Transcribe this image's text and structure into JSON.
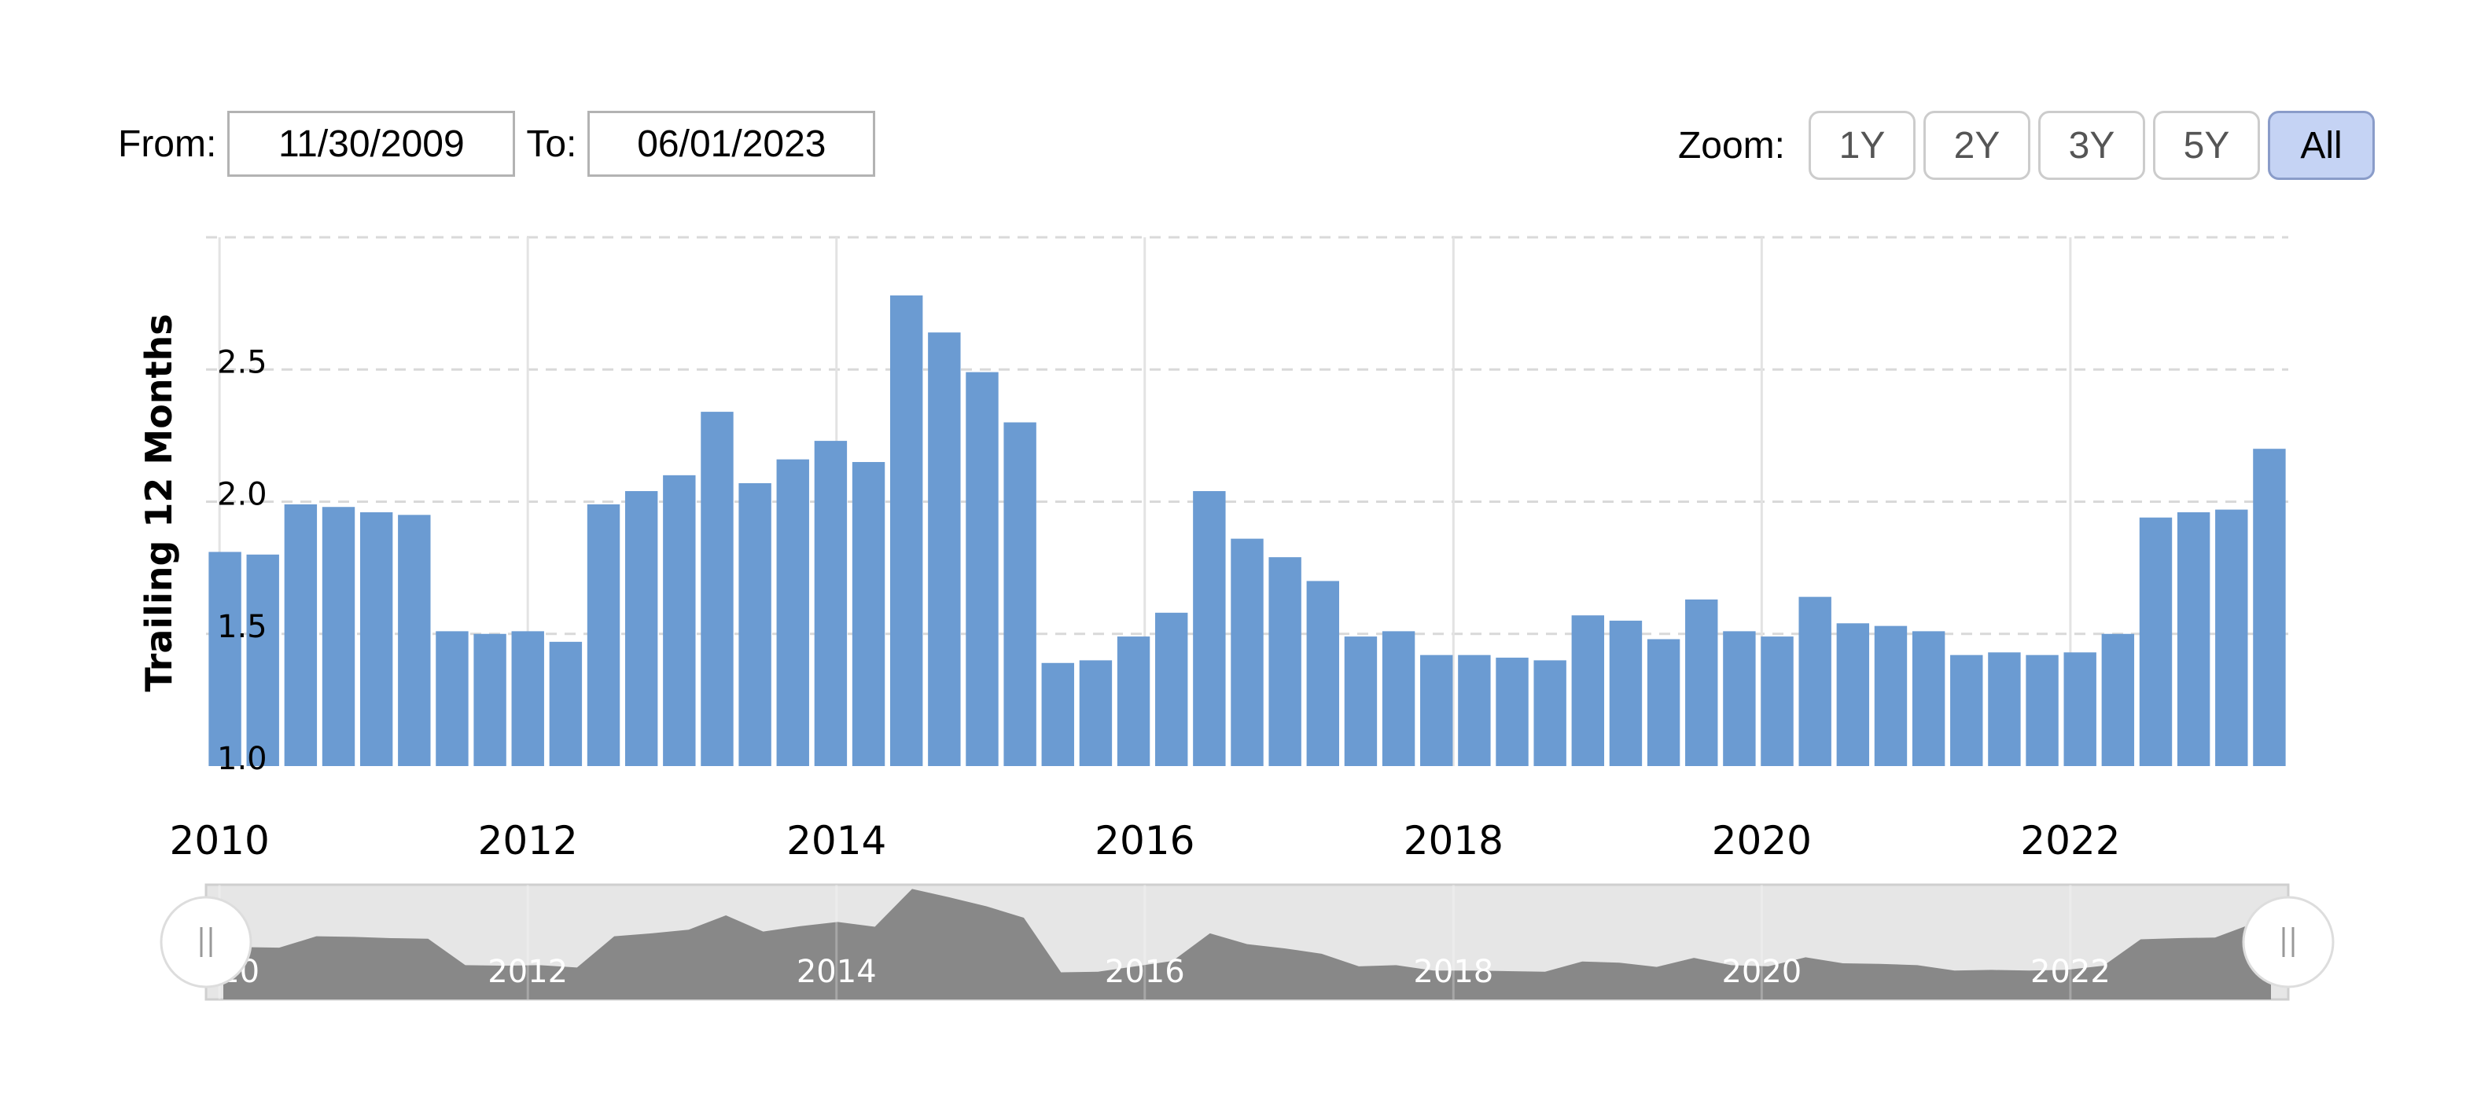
{
  "range_selector": {
    "from_label": "From:",
    "from_value": "11/30/2009",
    "to_label": "To:",
    "to_value": "06/01/2023"
  },
  "zoom": {
    "label": "Zoom:",
    "buttons": [
      "1Y",
      "2Y",
      "3Y",
      "5Y",
      "All"
    ],
    "active": "All"
  },
  "colors": {
    "bar": "#6b9bd2",
    "navigator_fill": "#888888",
    "navigator_bg": "#e6e6e6",
    "grid": "#d9d9d9"
  },
  "chart_data": {
    "type": "bar",
    "ylabel": "Trailing 12 Months",
    "xlabel": "",
    "ylim": [
      1.0,
      3.0
    ],
    "yticks": [
      1.0,
      1.5,
      2.0,
      2.5
    ],
    "xticks": [
      "2010",
      "2012",
      "2014",
      "2016",
      "2018",
      "2020",
      "2022"
    ],
    "x_start": "2009-11-30",
    "x_end": "2023-06-01",
    "grid": "horizontal dashed, vertical at year ticks",
    "legend": "none",
    "navigator": true,
    "series": [
      {
        "dates": [
          "2009-11-30",
          "2010-02-28",
          "2010-05-31",
          "2010-08-31",
          "2010-11-30",
          "2011-02-28",
          "2011-05-31",
          "2011-08-31",
          "2011-11-30",
          "2012-02-29",
          "2012-05-31",
          "2012-08-31",
          "2012-11-30",
          "2013-02-28",
          "2013-05-31",
          "2013-08-31",
          "2013-11-30",
          "2014-02-28",
          "2014-05-31",
          "2014-08-31",
          "2014-11-30",
          "2015-02-28",
          "2015-05-31",
          "2015-08-31",
          "2015-11-30",
          "2016-02-29",
          "2016-05-31",
          "2016-08-31",
          "2016-11-30",
          "2017-02-28",
          "2017-05-31",
          "2017-08-31",
          "2017-11-30",
          "2018-02-28",
          "2018-05-31",
          "2018-08-31",
          "2018-11-30",
          "2019-02-28",
          "2019-05-31",
          "2019-08-31",
          "2019-11-30",
          "2020-02-29",
          "2020-05-31",
          "2020-08-31",
          "2020-11-30",
          "2021-02-28",
          "2021-05-31",
          "2021-08-31",
          "2021-11-30",
          "2022-02-28",
          "2022-05-31",
          "2022-08-31",
          "2022-11-30",
          "2023-02-28",
          "2023-06-01"
        ],
        "values": [
          1.81,
          1.8,
          1.99,
          1.98,
          1.96,
          1.95,
          1.51,
          1.5,
          1.51,
          1.47,
          1.99,
          2.04,
          2.1,
          2.34,
          2.07,
          2.16,
          2.23,
          2.15,
          2.78,
          2.64,
          2.49,
          2.3,
          1.39,
          1.4,
          1.49,
          1.58,
          2.04,
          1.86,
          1.79,
          1.7,
          1.49,
          1.51,
          1.42,
          1.42,
          1.41,
          1.4,
          1.57,
          1.55,
          1.48,
          1.63,
          1.51,
          1.49,
          1.64,
          1.54,
          1.53,
          1.51,
          1.42,
          1.43,
          1.42,
          1.43,
          1.5,
          1.94,
          1.96,
          1.97,
          2.2
        ]
      }
    ]
  }
}
